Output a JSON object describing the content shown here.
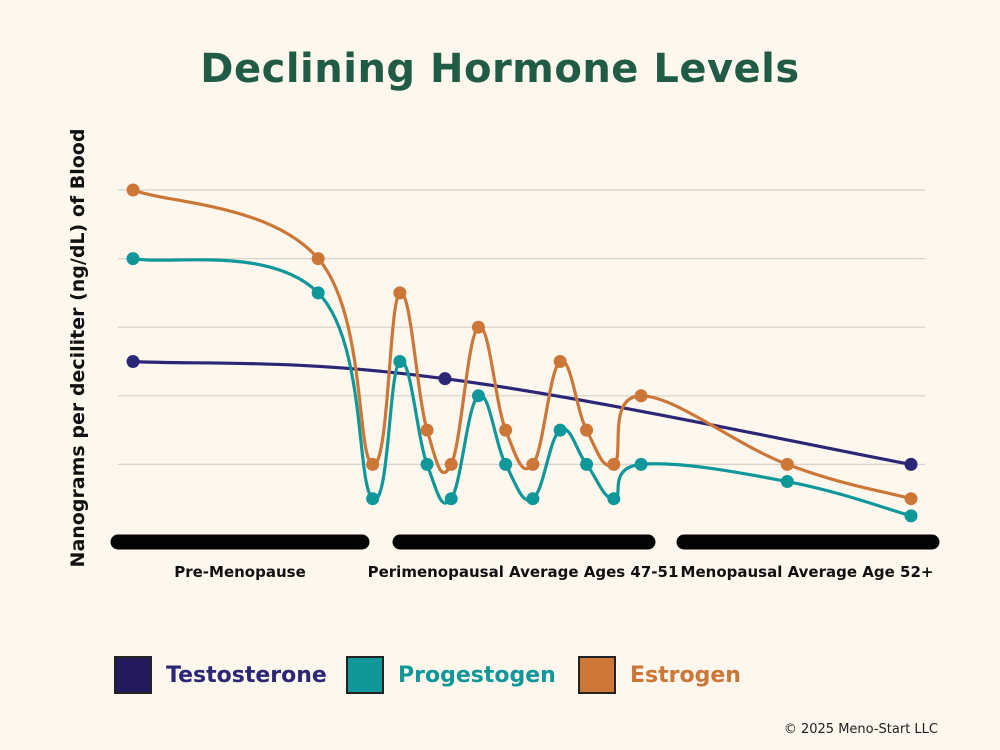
{
  "chart_data": {
    "type": "line",
    "title": "Declining Hormone Levels",
    "ylabel": "Nanograms per deciliter (ng/dL) of Blood",
    "xlabel": "",
    "ylim": [
      0,
      10
    ],
    "xlim": [
      0,
      100
    ],
    "grid": true,
    "legend_position": "bottom",
    "phases": [
      "Pre-Menopause",
      "Perimenopausal Average Ages 47-51",
      "Menopausal Average Age 52+"
    ],
    "series": [
      {
        "name": "Testosterone",
        "color": "#2b2675",
        "x": [
          0,
          40.1,
          100
        ],
        "values": [
          5.0,
          4.5,
          2.0
        ]
      },
      {
        "name": "Progestogen",
        "color": "#0f9799",
        "x": [
          0,
          23.8,
          30.8,
          34.3,
          37.8,
          40.9,
          44.4,
          47.9,
          51.4,
          54.9,
          58.3,
          61.8,
          65.3,
          84.1,
          100
        ],
        "values": [
          8.0,
          7.0,
          1.0,
          5.0,
          2.0,
          1.0,
          4.0,
          2.0,
          1.0,
          3.0,
          2.0,
          1.0,
          2.0,
          1.5,
          0.5
        ]
      },
      {
        "name": "Estrogen",
        "color": "#cc7738",
        "x": [
          0,
          23.8,
          30.8,
          34.3,
          37.8,
          40.9,
          44.4,
          47.9,
          51.4,
          54.9,
          58.3,
          61.8,
          65.3,
          84.1,
          100
        ],
        "values": [
          10.0,
          8.0,
          2.0,
          7.0,
          3.0,
          2.0,
          6.0,
          3.0,
          2.0,
          5.0,
          3.0,
          2.0,
          4.0,
          2.0,
          1.0
        ]
      }
    ]
  },
  "footer": {
    "copyright": "© 2025 Meno-Start LLC"
  }
}
